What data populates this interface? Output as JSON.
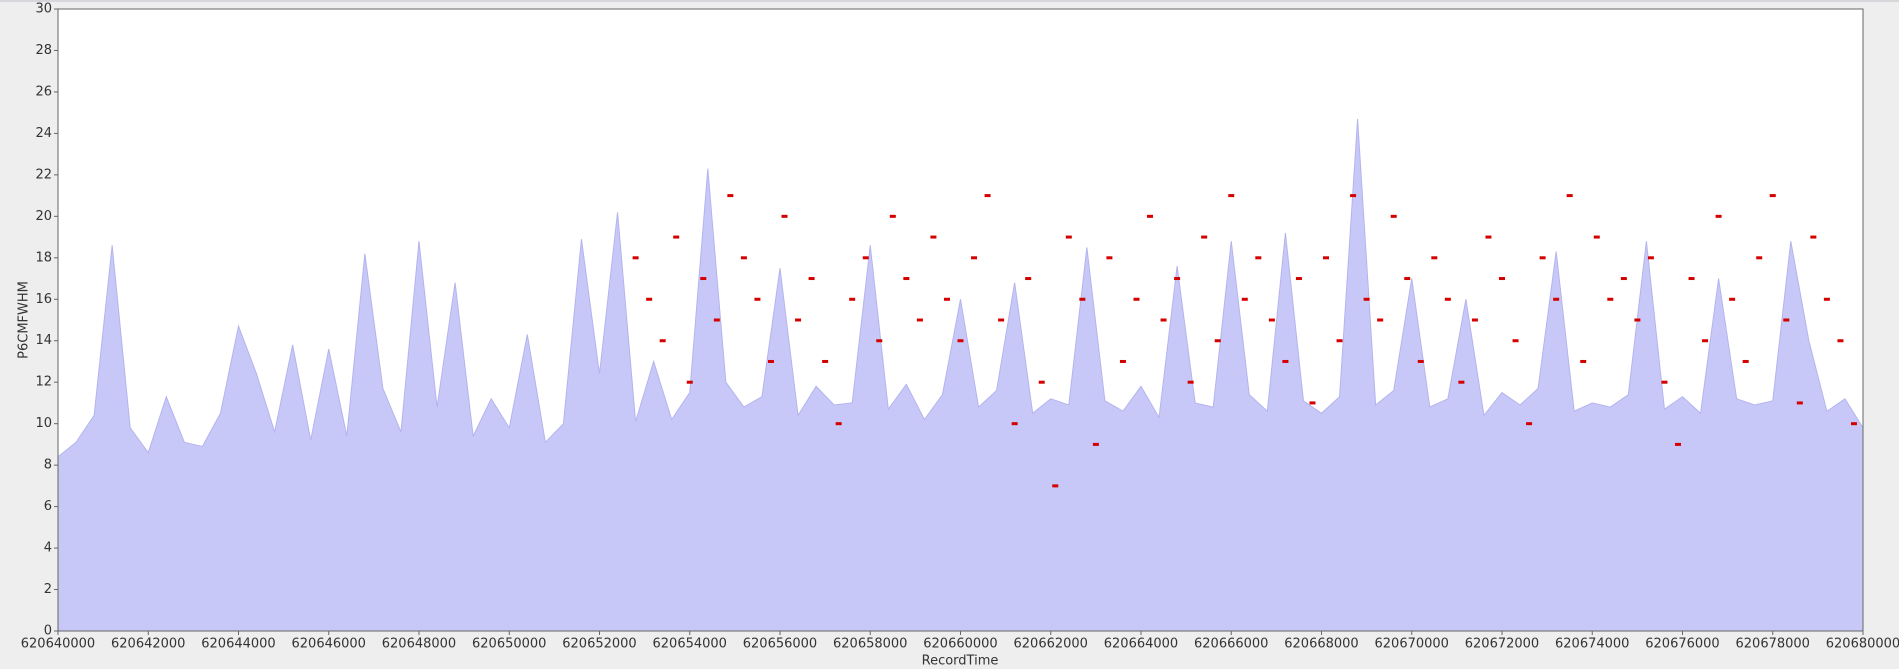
{
  "chart_data": {
    "type": "area",
    "x_label": "RecordTime",
    "y_label": "P6CMFWHM",
    "xlim": [
      620640000,
      620680000
    ],
    "xticks": [
      620640000,
      620642000,
      620644000,
      620646000,
      620648000,
      620650000,
      620652000,
      620654000,
      620656000,
      620658000,
      620660000,
      620662000,
      620664000,
      620666000,
      620668000,
      620670000,
      620672000,
      620674000,
      620676000,
      620678000,
      620680000
    ],
    "ylim": [
      0,
      30
    ],
    "yticks": [
      0,
      2,
      4,
      6,
      8,
      10,
      12,
      14,
      16,
      18,
      20,
      22,
      24,
      26,
      28,
      30
    ],
    "series": [
      {
        "type": "area",
        "color": "#c8c8f8",
        "edge_color": "#b4b4ee",
        "x": [
          620640000,
          620640400,
          620640800,
          620641200,
          620641600,
          620642000,
          620642400,
          620642800,
          620643200,
          620643600,
          620644000,
          620644400,
          620644800,
          620645200,
          620645600,
          620646000,
          620646400,
          620646800,
          620647200,
          620647600,
          620648000,
          620648400,
          620648800,
          620649200,
          620649600,
          620650000,
          620650400,
          620650800,
          620651200,
          620651600,
          620652000,
          620652400,
          620652800,
          620653200,
          620653600,
          620654000,
          620654400,
          620654800,
          620655200,
          620655600,
          620656000,
          620656400,
          620656800,
          620657200,
          620657600,
          620658000,
          620658400,
          620658800,
          620659200,
          620659600,
          620660000,
          620660400,
          620660800,
          620661200,
          620661600,
          620662000,
          620662400,
          620662800,
          620663200,
          620663600,
          620664000,
          620664400,
          620664800,
          620665200,
          620665600,
          620666000,
          620666400,
          620666800,
          620667200,
          620667600,
          620668000,
          620668400,
          620668800,
          620669200,
          620669600,
          620670000,
          620670400,
          620670800,
          620671200,
          620671600,
          620672000,
          620672400,
          620672800,
          620673200,
          620673600,
          620674000,
          620674400,
          620674800,
          620675200,
          620675600,
          620676000,
          620676400,
          620676800,
          620677200,
          620677600,
          620678000,
          620678400,
          620678800,
          620679200,
          620679600,
          620680000
        ],
        "values": [
          8.4,
          9.1,
          10.4,
          18.6,
          9.8,
          8.6,
          11.3,
          9.1,
          8.9,
          10.5,
          14.7,
          12.4,
          9.6,
          13.8,
          9.2,
          13.6,
          9.4,
          18.2,
          11.7,
          9.6,
          18.8,
          10.8,
          16.8,
          9.4,
          11.2,
          9.8,
          14.3,
          9.1,
          10.0,
          18.9,
          12.4,
          20.2,
          10.1,
          13.0,
          10.2,
          11.5,
          22.3,
          12.0,
          10.8,
          11.3,
          17.5,
          10.4,
          11.8,
          10.9,
          11.0,
          18.6,
          10.7,
          11.9,
          10.2,
          11.4,
          16.0,
          10.8,
          11.6,
          16.8,
          10.5,
          11.2,
          10.9,
          18.5,
          11.1,
          10.6,
          11.8,
          10.3,
          17.6,
          11.0,
          10.8,
          18.8,
          11.4,
          10.6,
          19.2,
          11.1,
          10.5,
          11.3,
          24.7,
          10.9,
          11.6,
          17.0,
          10.8,
          11.2,
          16.0,
          10.4,
          11.5,
          10.9,
          11.7,
          18.3,
          10.6,
          11.0,
          10.8,
          11.4,
          18.8,
          10.7,
          11.3,
          10.5,
          17.0,
          11.2,
          10.9,
          11.1,
          18.8,
          14.0,
          10.6,
          11.2,
          9.8
        ]
      },
      {
        "type": "scatter",
        "color": "#d40000",
        "x": [
          620652800,
          620653100,
          620653400,
          620653700,
          620654000,
          620654300,
          620654600,
          620654900,
          620655200,
          620655500,
          620655800,
          620656100,
          620656400,
          620656700,
          620657000,
          620657300,
          620657600,
          620657900,
          620658200,
          620658500,
          620658800,
          620659100,
          620659400,
          620659700,
          620660000,
          620660300,
          620660600,
          620660900,
          620661200,
          620661500,
          620661800,
          620662100,
          620662400,
          620662700,
          620663000,
          620663300,
          620663600,
          620663900,
          620664200,
          620664500,
          620664800,
          620665100,
          620665400,
          620665700,
          620666000,
          620666300,
          620666600,
          620666900,
          620667200,
          620667500,
          620667800,
          620668100,
          620668400,
          620668700,
          620669000,
          620669300,
          620669600,
          620669900,
          620670200,
          620670500,
          620670800,
          620671100,
          620671400,
          620671700,
          620672000,
          620672300,
          620672600,
          620672900,
          620673200,
          620673500,
          620673800,
          620674100,
          620674400,
          620674700,
          620675000,
          620675300,
          620675600,
          620675900,
          620676200,
          620676500,
          620676800,
          620677100,
          620677400,
          620677700,
          620678000,
          620678300,
          620678600,
          620678900,
          620679200,
          620679500,
          620679800
        ],
        "values": [
          18,
          16,
          14,
          19,
          12,
          17,
          15,
          21,
          18,
          16,
          13,
          20,
          15,
          17,
          13,
          10,
          16,
          18,
          14,
          20,
          17,
          15,
          19,
          16,
          14,
          18,
          21,
          15,
          10,
          17,
          12,
          7,
          19,
          16,
          9,
          18,
          13,
          16,
          20,
          15,
          17,
          12,
          19,
          14,
          21,
          16,
          18,
          15,
          13,
          17,
          11,
          18,
          14,
          21,
          16,
          15,
          20,
          17,
          13,
          18,
          16,
          12,
          15,
          19,
          17,
          14,
          10,
          18,
          16,
          21,
          13,
          19,
          16,
          17,
          15,
          18,
          12,
          9,
          17,
          14,
          20,
          16,
          13,
          18,
          21,
          15,
          11,
          19,
          16,
          14,
          10
        ]
      }
    ]
  }
}
